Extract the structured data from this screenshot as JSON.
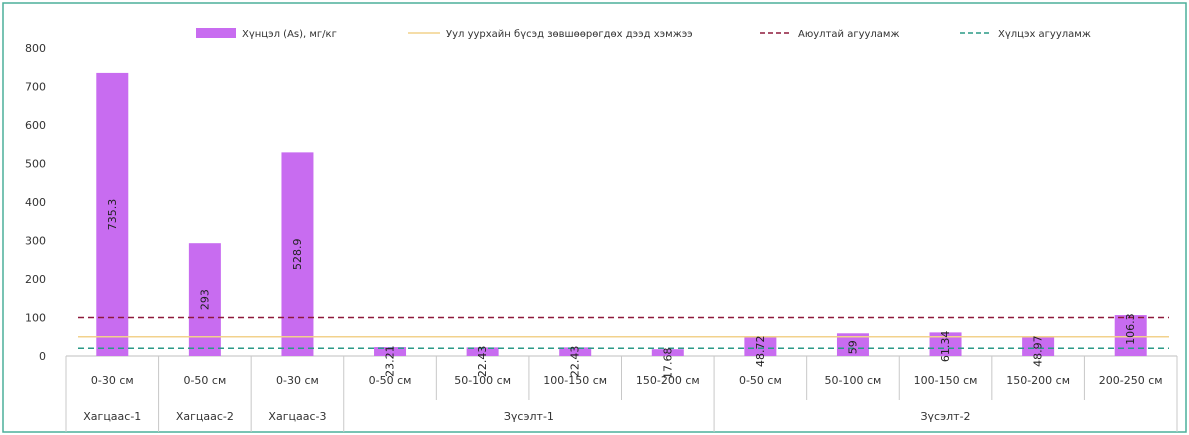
{
  "chart_data": {
    "type": "bar",
    "title": "",
    "xlabel": "",
    "ylabel": "",
    "ylim": [
      0,
      800
    ],
    "yticks": [
      "0",
      "100",
      "200",
      "300",
      "400",
      "500",
      "600",
      "700",
      "800"
    ],
    "grid": false,
    "legend_position": "top",
    "categories": [
      "0-30 см",
      "0-50 см",
      "0-30 см",
      "0-50 см",
      "50-100 см",
      "100-150 см",
      "150-200 см",
      "0-50 см",
      "50-100 см",
      "100-150 см",
      "150-200 см",
      "200-250 см"
    ],
    "groups": [
      {
        "label": "Хагцаас-1",
        "count": 1
      },
      {
        "label": "Хагцаас-2",
        "count": 1
      },
      {
        "label": "Хагцаас-3",
        "count": 1
      },
      {
        "label": "Зүсэлт-1",
        "count": 4
      },
      {
        "label": "Зүсэлт-2",
        "count": 5
      }
    ],
    "series": [
      {
        "name": "Хүнцэл (As), мг/кг",
        "type": "bar",
        "color": "#c86cf0",
        "values": [
          735.3,
          293,
          528.9,
          23.21,
          22.43,
          22.43,
          17.68,
          48.72,
          59,
          61.34,
          48.97,
          106.3
        ],
        "labels": [
          "735.3",
          "293",
          "528.9",
          "23.21",
          "22.43",
          "22.43",
          "17.68",
          "48.72",
          "59",
          "61.34",
          "48.97",
          "106.3"
        ]
      },
      {
        "name": "Уул уурхайн бүсэд зөвшөөрөгдөх дээд хэмжээ",
        "type": "line",
        "style": "solid",
        "color": "#f2d28c",
        "value": 50
      },
      {
        "name": "Аюултай агууламж",
        "type": "line",
        "style": "dashed",
        "color": "#8e1a3c",
        "value": 100
      },
      {
        "name": "Хүлцэх агууламж",
        "type": "line",
        "style": "dashed",
        "color": "#2a9a86",
        "value": 20
      }
    ]
  }
}
